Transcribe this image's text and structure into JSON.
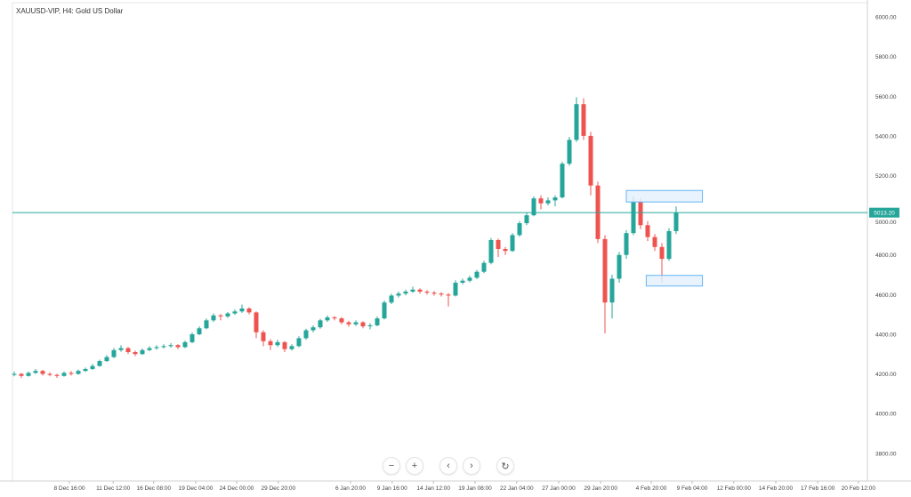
{
  "header": {
    "title": "XAUUSD-VIP, H4: Gold US Dollar"
  },
  "controls": {
    "zoom_out": {
      "icon": "minus-icon",
      "glyph": "−"
    },
    "zoom_in": {
      "icon": "plus-icon",
      "glyph": "+"
    },
    "scroll_left": {
      "icon": "chevron-left-icon",
      "glyph": "‹"
    },
    "scroll_right": {
      "icon": "chevron-right-icon",
      "glyph": "›"
    },
    "reset": {
      "icon": "reset-icon",
      "glyph": "↻"
    }
  },
  "colors": {
    "up": "#26a69a",
    "down": "#ef5350",
    "price_line": "#26a69a",
    "zone_fill": "#e3f0fd",
    "zone_stroke": "#64b5f6"
  },
  "chart_data": {
    "type": "candlestick",
    "title": "XAUUSD-VIP, H4: Gold US Dollar",
    "ylim": [
      3660,
      6072
    ],
    "xlim": [
      0,
      120
    ],
    "grid": false,
    "y_ticks": [
      6000,
      5800,
      5600,
      5400,
      5200,
      5000,
      4800,
      4600,
      4400,
      4200,
      4000,
      3800
    ],
    "y_tick_labels": [
      "6000.00",
      "5800.00",
      "5600.00",
      "5400.00",
      "5200.00",
      "5000.00",
      "4800.00",
      "4600.00",
      "4400.00",
      "4200.00",
      "4000.00",
      "3800.00"
    ],
    "x_ticks": [
      {
        "bar": 7.75,
        "label": "8 Dec 16:00"
      },
      {
        "bar": 13.9,
        "label": "11 Dec 12:00"
      },
      {
        "bar": 19.6,
        "label": "16 Dec 08:00"
      },
      {
        "bar": 25.5,
        "label": "19 Dec 04:00"
      },
      {
        "bar": 31.25,
        "label": "24 Dec 00:00"
      },
      {
        "bar": 37.1,
        "label": "29 Dec 20:00"
      },
      {
        "bar": 47.25,
        "label": "6 Jan 20:00"
      },
      {
        "bar": 53.1,
        "label": "9 Jan 16:00"
      },
      {
        "bar": 58.9,
        "label": "14 Jan 12:00"
      },
      {
        "bar": 64.75,
        "label": "19 Jan 08:00"
      },
      {
        "bar": 70.6,
        "label": "22 Jan 04:00"
      },
      {
        "bar": 76.5,
        "label": "27 Jan 00:00"
      },
      {
        "bar": 82.4,
        "label": "29 Jan 20:00"
      },
      {
        "bar": 89.5,
        "label": "4 Feb 20:00"
      },
      {
        "bar": 95.25,
        "label": "9 Feb 04:00"
      },
      {
        "bar": 101.1,
        "label": "12 Feb 00:00"
      },
      {
        "bar": 107,
        "label": "14 Feb 20:00"
      },
      {
        "bar": 112.9,
        "label": "17 Feb 16:00"
      },
      {
        "bar": 118.6,
        "label": "20 Feb 12:00"
      }
    ],
    "last_price": 5013.2,
    "last_price_label": "5013.20",
    "zones": [
      {
        "name": "resistance-zone",
        "from_bar": 86,
        "to_bar": 96.7,
        "top": 5125,
        "bottom": 5067
      },
      {
        "name": "support-zone",
        "from_bar": 88.8,
        "to_bar": 96.7,
        "top": 4697,
        "bottom": 4643
      }
    ],
    "ohlc": [
      [
        4195,
        4212,
        4188,
        4200
      ],
      [
        4200,
        4205,
        4180,
        4190
      ],
      [
        4190,
        4212,
        4186,
        4205
      ],
      [
        4205,
        4225,
        4200,
        4215
      ],
      [
        4215,
        4220,
        4192,
        4200
      ],
      [
        4200,
        4208,
        4188,
        4195
      ],
      [
        4195,
        4200,
        4180,
        4190
      ],
      [
        4190,
        4212,
        4186,
        4205
      ],
      [
        4205,
        4214,
        4192,
        4200
      ],
      [
        4200,
        4222,
        4196,
        4215
      ],
      [
        4215,
        4232,
        4210,
        4225
      ],
      [
        4225,
        4250,
        4220,
        4240
      ],
      [
        4240,
        4272,
        4236,
        4265
      ],
      [
        4265,
        4295,
        4260,
        4285
      ],
      [
        4285,
        4330,
        4280,
        4320
      ],
      [
        4320,
        4345,
        4312,
        4330
      ],
      [
        4330,
        4336,
        4300,
        4310
      ],
      [
        4310,
        4318,
        4290,
        4300
      ],
      [
        4300,
        4328,
        4296,
        4320
      ],
      [
        4320,
        4340,
        4315,
        4330
      ],
      [
        4330,
        4345,
        4322,
        4335
      ],
      [
        4335,
        4350,
        4328,
        4340
      ],
      [
        4340,
        4355,
        4332,
        4345
      ],
      [
        4345,
        4350,
        4325,
        4335
      ],
      [
        4335,
        4368,
        4330,
        4360
      ],
      [
        4360,
        4408,
        4355,
        4400
      ],
      [
        4400,
        4440,
        4395,
        4430
      ],
      [
        4430,
        4480,
        4425,
        4470
      ],
      [
        4470,
        4505,
        4462,
        4495
      ],
      [
        4495,
        4502,
        4470,
        4490
      ],
      [
        4490,
        4512,
        4482,
        4505
      ],
      [
        4505,
        4525,
        4498,
        4515
      ],
      [
        4515,
        4550,
        4508,
        4530
      ],
      [
        4530,
        4536,
        4500,
        4510
      ],
      [
        4510,
        4515,
        4380,
        4410
      ],
      [
        4410,
        4420,
        4340,
        4365
      ],
      [
        4365,
        4375,
        4320,
        4345
      ],
      [
        4345,
        4372,
        4336,
        4360
      ],
      [
        4360,
        4366,
        4310,
        4325
      ],
      [
        4325,
        4350,
        4318,
        4340
      ],
      [
        4340,
        4390,
        4335,
        4380
      ],
      [
        4380,
        4428,
        4372,
        4420
      ],
      [
        4420,
        4445,
        4410,
        4435
      ],
      [
        4435,
        4478,
        4428,
        4470
      ],
      [
        4470,
        4495,
        4462,
        4485
      ],
      [
        4485,
        4492,
        4470,
        4480
      ],
      [
        4480,
        4486,
        4450,
        4460
      ],
      [
        4460,
        4468,
        4438,
        4450
      ],
      [
        4450,
        4470,
        4442,
        4460
      ],
      [
        4460,
        4466,
        4430,
        4440
      ],
      [
        4440,
        4455,
        4425,
        4445
      ],
      [
        4445,
        4490,
        4440,
        4480
      ],
      [
        4480,
        4570,
        4475,
        4560
      ],
      [
        4560,
        4605,
        4552,
        4595
      ],
      [
        4595,
        4615,
        4585,
        4605
      ],
      [
        4605,
        4625,
        4596,
        4615
      ],
      [
        4615,
        4640,
        4608,
        4625
      ],
      [
        4625,
        4632,
        4605,
        4615
      ],
      [
        4615,
        4622,
        4600,
        4610
      ],
      [
        4610,
        4618,
        4595,
        4605
      ],
      [
        4605,
        4612,
        4590,
        4600
      ],
      [
        4600,
        4608,
        4540,
        4595
      ],
      [
        4595,
        4672,
        4590,
        4660
      ],
      [
        4660,
        4680,
        4652,
        4670
      ],
      [
        4670,
        4695,
        4662,
        4685
      ],
      [
        4685,
        4725,
        4678,
        4715
      ],
      [
        4715,
        4770,
        4708,
        4760
      ],
      [
        4760,
        4885,
        4752,
        4875
      ],
      [
        4875,
        4882,
        4790,
        4830
      ],
      [
        4830,
        4840,
        4800,
        4820
      ],
      [
        4820,
        4910,
        4815,
        4900
      ],
      [
        4900,
        4970,
        4892,
        4960
      ],
      [
        4960,
        5012,
        4950,
        5000
      ],
      [
        5000,
        5095,
        4995,
        5085
      ],
      [
        5085,
        5100,
        5030,
        5060
      ],
      [
        5060,
        5090,
        5050,
        5075
      ],
      [
        5075,
        5100,
        5045,
        5090
      ],
      [
        5090,
        5270,
        5085,
        5260
      ],
      [
        5260,
        5395,
        5250,
        5380
      ],
      [
        5380,
        5595,
        5370,
        5560
      ],
      [
        5560,
        5590,
        5380,
        5400
      ],
      [
        5400,
        5420,
        5100,
        5150
      ],
      [
        5150,
        5170,
        4860,
        4880
      ],
      [
        4880,
        4900,
        4405,
        4560
      ],
      [
        4560,
        4700,
        4480,
        4680
      ],
      [
        4680,
        4815,
        4660,
        4800
      ],
      [
        4800,
        4925,
        4780,
        4910
      ],
      [
        4910,
        5095,
        4900,
        5070
      ],
      [
        5070,
        5085,
        4930,
        4950
      ],
      [
        4950,
        4970,
        4870,
        4890
      ],
      [
        4890,
        4905,
        4820,
        4840
      ],
      [
        4840,
        4860,
        4660,
        4780
      ],
      [
        4780,
        4935,
        4770,
        4920
      ],
      [
        4920,
        5045,
        4905,
        5013
      ]
    ]
  }
}
